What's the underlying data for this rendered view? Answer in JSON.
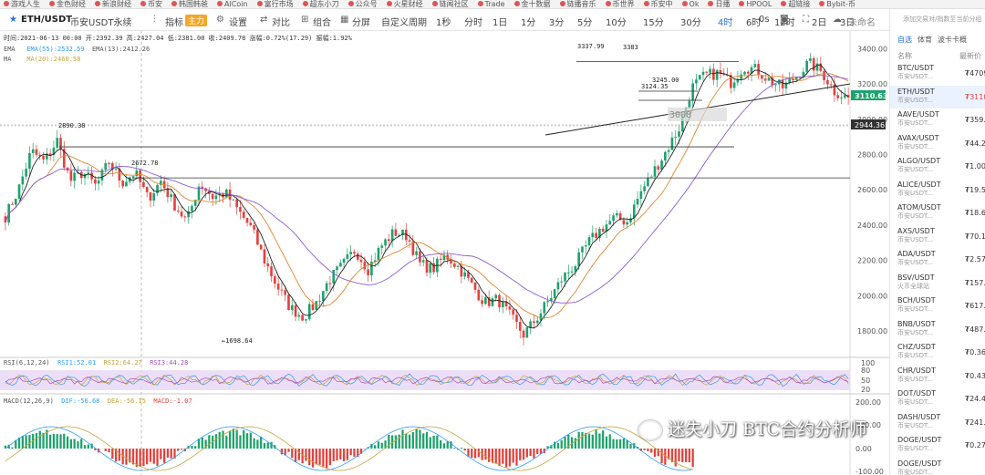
{
  "bookmarks": [
    "游戏人生",
    "金色财经",
    "新浪财经",
    "币安",
    "韩国韩爸",
    "AICoin",
    "富行市场",
    "超东小刀",
    "公众号",
    "火星财经",
    "链闻社区",
    "Trade",
    "金十数据",
    "链播音乐",
    "币世界",
    "币安中",
    "Ok",
    "日播",
    "HPOOL",
    "超链接",
    "Bybit-币"
  ],
  "toolbar": {
    "symbol": "ETH/USDT",
    "market": "币安USDT永续",
    "indicator": "指标",
    "indicator_tag": "主力",
    "settings": "设置",
    "compare": "对比",
    "combo": "组合",
    "split": "分屏",
    "custom_period": "自定义周期",
    "periods": [
      "1秒",
      "分时",
      "1日",
      "1分",
      "3分",
      "5分",
      "10分",
      "15分",
      "30分",
      "4时",
      "6时",
      "12时",
      "2日",
      "3日"
    ],
    "active_period": "4时",
    "zero_s": "0s",
    "unnamed": "未命名"
  },
  "ohlc": "时间:2021-06-13 00:00  开:2392.39  高:2427.04  低:2381.00  收:2409.78  涨幅:0.72%(17.29)  振幅:1.92%",
  "ema_line": {
    "label": "EMA",
    "v1": "EMA(55):2532.59",
    "v2": "EMA(13):2412.26"
  },
  "ma_line": {
    "label": "MA",
    "v1": "MA(20):2460.58"
  },
  "rsi_line": {
    "label": "RSI(6,12,24)",
    "v1": "RSI1:52.01",
    "v2": "RSI2:64.27",
    "v3": "RSI3:44.28"
  },
  "macd_line": {
    "label": "MACD(12,26,9)",
    "v1": "DIF:-56.68",
    "v2": "DEA:-56.15",
    "v3": "MACD:-1.07"
  },
  "chart_data": {
    "type": "candlestick",
    "symbol": "ETH/USDT",
    "interval": "4h",
    "y_ticks": [
      3400,
      3200,
      3000,
      2800,
      2600,
      2400,
      2200,
      2000,
      1800
    ],
    "ylim": [
      1650,
      3480
    ],
    "price_tag": "3110.63",
    "level_tag": "2944.36",
    "annotations": [
      "3337.99",
      "3383",
      "3245.00",
      "3124.35",
      "3008",
      "2890.38",
      "2672.78",
      "1698.64"
    ],
    "levels": [
      2890.38,
      2672.78,
      3337.99
    ],
    "trendline": [
      [
        1880,
        2570
      ],
      [
        3110,
        3100
      ]
    ],
    "path_close": [
      [
        0,
        2450
      ],
      [
        3,
        2600
      ],
      [
        6,
        2820
      ],
      [
        9,
        2760
      ],
      [
        12,
        2880
      ],
      [
        15,
        2650
      ],
      [
        18,
        2700
      ],
      [
        21,
        2620
      ],
      [
        24,
        2760
      ],
      [
        27,
        2640
      ],
      [
        30,
        2700
      ],
      [
        33,
        2550
      ],
      [
        36,
        2650
      ],
      [
        39,
        2520
      ],
      [
        42,
        2420
      ],
      [
        45,
        2640
      ],
      [
        48,
        2560
      ],
      [
        51,
        2580
      ],
      [
        54,
        2480
      ],
      [
        57,
        2380
      ],
      [
        60,
        2200
      ],
      [
        63,
        2050
      ],
      [
        66,
        1930
      ],
      [
        69,
        1880
      ],
      [
        72,
        1960
      ],
      [
        75,
        2090
      ],
      [
        78,
        2170
      ],
      [
        81,
        2260
      ],
      [
        84,
        2150
      ],
      [
        87,
        2280
      ],
      [
        90,
        2360
      ],
      [
        93,
        2340
      ],
      [
        96,
        2180
      ],
      [
        99,
        2150
      ],
      [
        102,
        2230
      ],
      [
        105,
        2160
      ],
      [
        108,
        2060
      ],
      [
        111,
        1960
      ],
      [
        114,
        1980
      ],
      [
        117,
        1880
      ],
      [
        120,
        1780
      ],
      [
        123,
        1870
      ],
      [
        126,
        1980
      ],
      [
        129,
        2100
      ],
      [
        132,
        2180
      ],
      [
        135,
        2300
      ],
      [
        138,
        2380
      ],
      [
        141,
        2440
      ],
      [
        144,
        2420
      ],
      [
        147,
        2580
      ],
      [
        150,
        2700
      ],
      [
        153,
        2820
      ],
      [
        156,
        2950
      ],
      [
        159,
        3180
      ],
      [
        162,
        3250
      ],
      [
        165,
        3260
      ],
      [
        168,
        3210
      ],
      [
        171,
        3300
      ],
      [
        174,
        3280
      ],
      [
        177,
        3220
      ],
      [
        180,
        3180
      ],
      [
        183,
        3240
      ],
      [
        186,
        3320
      ],
      [
        189,
        3270
      ],
      [
        192,
        3160
      ],
      [
        195,
        3120
      ]
    ],
    "y_ticks_rsi": [
      100,
      80,
      50,
      20
    ],
    "y_ticks_macd": [
      200,
      100,
      0,
      -100
    ]
  }
}
